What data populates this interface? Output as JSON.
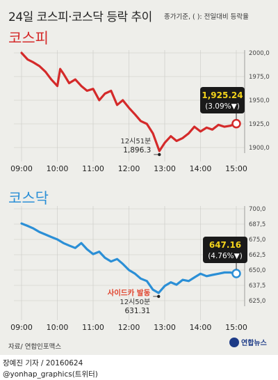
{
  "header": {
    "title": "24일 코스피·코스닥 등락 추이",
    "note": "종가기준, ( ): 전일대비 등락율"
  },
  "source_text": "자료/ 연합인포맥스",
  "logo_text": "연합뉴스",
  "footer": {
    "credit": "장예진 기자 / 20160624",
    "handle": "@yonhap_graphics(트위터)"
  },
  "colors": {
    "kospi": "#d42a2a",
    "kosdaq": "#2b8fd6",
    "label_bg": "#1a1a1a",
    "label_value": "#f3d31b",
    "accent_text": "#e0422c"
  },
  "chart_data": [
    {
      "type": "line",
      "title": "코스피",
      "ylim": [
        1900,
        2000
      ],
      "yticks": [
        "2000,0",
        "1975,0",
        "1950,0",
        "1925,0",
        "1900,0"
      ],
      "xticks": [
        "09:00",
        "10:00",
        "11:00",
        "12:00",
        "13:00",
        "14:00",
        "15:00"
      ],
      "x": [
        9.0,
        9.17,
        9.33,
        9.5,
        9.67,
        9.83,
        10.0,
        10.08,
        10.17,
        10.33,
        10.5,
        10.67,
        10.83,
        11.0,
        11.17,
        11.33,
        11.5,
        11.67,
        11.83,
        12.0,
        12.17,
        12.33,
        12.5,
        12.67,
        12.85,
        13.0,
        13.17,
        13.33,
        13.5,
        13.67,
        13.83,
        14.0,
        14.17,
        14.33,
        14.5,
        14.67,
        14.83,
        15.0
      ],
      "y": [
        2000,
        1993,
        1990,
        1986,
        1980,
        1972,
        1965,
        1983,
        1978,
        1968,
        1972,
        1965,
        1960,
        1962,
        1950,
        1957,
        1960,
        1945,
        1950,
        1942,
        1935,
        1928,
        1925,
        1915,
        1896.3,
        1905,
        1912,
        1907,
        1910,
        1915,
        1922,
        1917,
        1921,
        1919,
        1924,
        1922,
        1923,
        1925.24
      ],
      "last_value": "1,925.24",
      "last_change": "(3.09%▼)",
      "low_label_time": "12시51분",
      "low_label_value": "1,896.3"
    },
    {
      "type": "line",
      "title": "코스닥",
      "ylim": [
        625,
        700
      ],
      "yticks": [
        "700,0",
        "687,5",
        "675,0",
        "662,5",
        "650,0",
        "637,5",
        "625,0"
      ],
      "xticks": [
        "09:00",
        "10:00",
        "11:00",
        "12:00",
        "13:00",
        "14:00",
        "15:00"
      ],
      "x": [
        9.0,
        9.17,
        9.33,
        9.5,
        9.67,
        9.83,
        10.0,
        10.17,
        10.33,
        10.5,
        10.67,
        10.83,
        11.0,
        11.17,
        11.33,
        11.5,
        11.67,
        11.83,
        12.0,
        12.17,
        12.33,
        12.5,
        12.67,
        12.83,
        13.0,
        13.17,
        13.33,
        13.5,
        13.67,
        13.83,
        14.0,
        14.17,
        14.33,
        14.5,
        14.67,
        14.83,
        15.0
      ],
      "y": [
        688,
        686,
        684,
        681,
        679,
        677,
        675,
        672,
        670,
        668,
        672,
        667,
        663,
        665,
        660,
        657,
        659,
        655,
        650,
        647,
        643,
        641,
        634,
        631.31,
        637,
        640,
        638,
        642,
        641,
        644,
        647,
        645,
        646,
        647,
        648,
        648,
        647.16
      ],
      "last_value": "647.16",
      "last_change": "(4.76%▼)",
      "low_label_tag": "사이드카 발동",
      "low_label_time": "12시50분",
      "low_label_value": "631.31"
    }
  ]
}
